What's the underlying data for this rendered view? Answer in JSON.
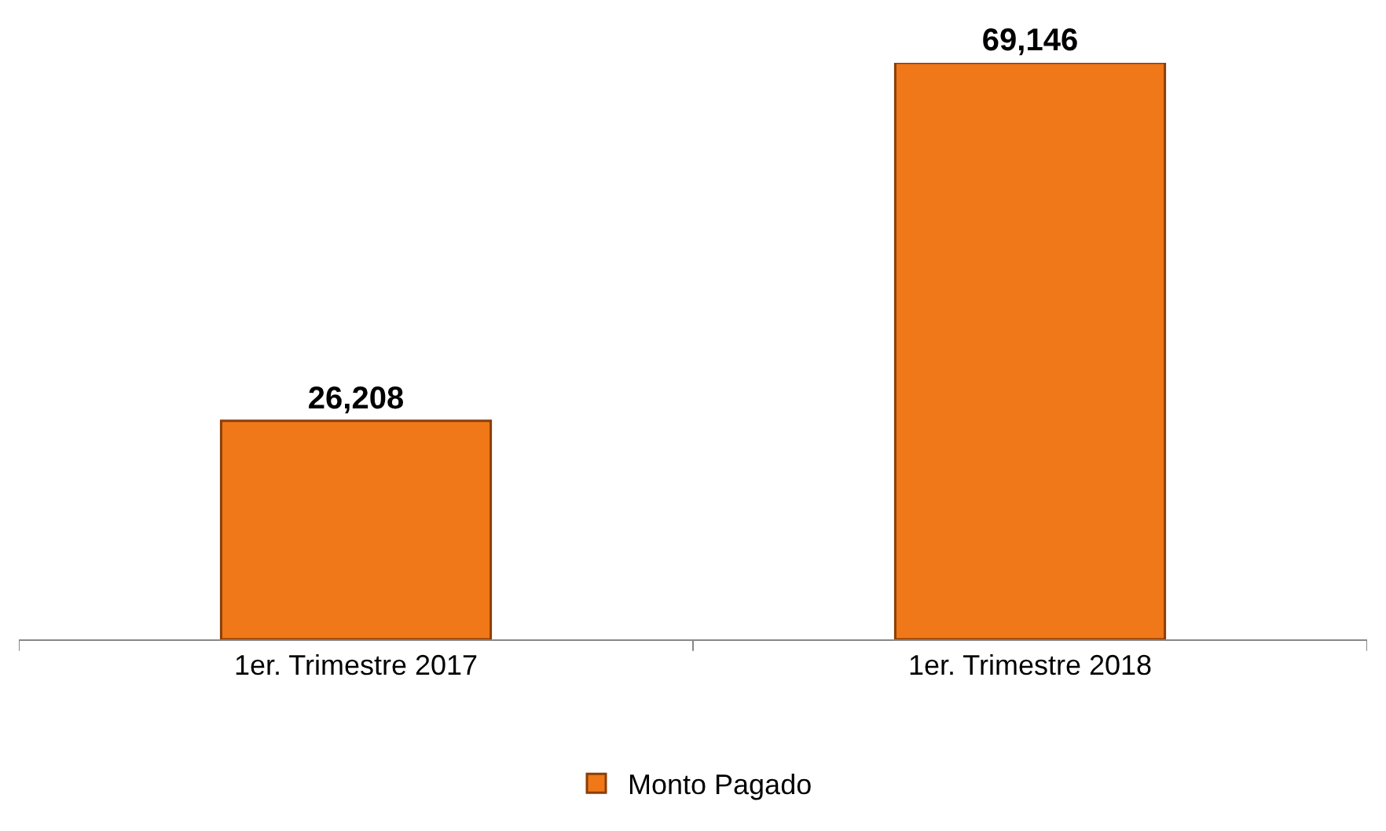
{
  "chart_data": {
    "type": "bar",
    "categories": [
      "1er. Trimestre 2017",
      "1er. Trimestre 2018"
    ],
    "series": [
      {
        "name": "Monto Pagado",
        "color": "#f07818",
        "values": [
          26208,
          69146
        ],
        "value_labels": [
          "26,208",
          "69,146"
        ]
      }
    ],
    "legend": "bottom",
    "tick_labels": "x"
  }
}
